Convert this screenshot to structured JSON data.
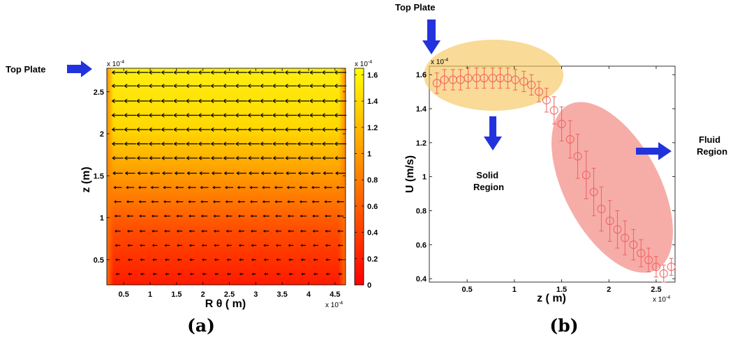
{
  "annotations": {
    "top_plate_left": "Top Plate",
    "top_plate_right": "Top Plate",
    "solid_region": [
      "Solid",
      "Region"
    ],
    "fluid_region": [
      "Fluid",
      "Region"
    ],
    "arrow_color": "#2233dd",
    "solid_ellipse_color": "#f5c455",
    "fluid_ellipse_color": "#f07a72"
  },
  "chart_data": [
    {
      "type": "heatmap",
      "panel_label": "(a)",
      "xlabel": "R θ ( m)",
      "ylabel": "z (m)",
      "x_ticks": [
        "0.5",
        "1",
        "1.5",
        "2",
        "2.5",
        "3",
        "3.5",
        "4",
        "4.5"
      ],
      "x_tick_values": [
        0.5,
        1,
        1.5,
        2,
        2.5,
        3,
        3.5,
        4,
        4.5
      ],
      "x_multiplier": "x 10",
      "x_multiplier_exp": "-4",
      "y_ticks": [
        "0.5",
        "1",
        "1.5",
        "2",
        "2.5"
      ],
      "y_tick_values": [
        0.5,
        1,
        1.5,
        2,
        2.5
      ],
      "y_multiplier": "x 10",
      "y_multiplier_exp": "-4",
      "xlim": [
        0.18,
        4.7
      ],
      "ylim": [
        0.2,
        2.78
      ],
      "colorbar": {
        "ticks": [
          "0",
          "0.2",
          "0.4",
          "0.6",
          "0.8",
          "1",
          "1.2",
          "1.4",
          "1.6"
        ],
        "tick_values": [
          0,
          0.2,
          0.4,
          0.6,
          0.8,
          1.0,
          1.2,
          1.4,
          1.6
        ],
        "multiplier": "x 10",
        "multiplier_exp": "-4",
        "range": [
          0,
          1.65
        ],
        "colormap": "autumn"
      },
      "vector_field": {
        "direction": "negative x",
        "rows_z": [
          0.33,
          0.5,
          0.67,
          0.84,
          1.02,
          1.19,
          1.36,
          1.53,
          1.71,
          1.88,
          2.05,
          2.22,
          2.39,
          2.57,
          2.73
        ],
        "magnitude": [
          0.47,
          0.55,
          0.64,
          0.72,
          0.8,
          0.92,
          1.05,
          1.3,
          1.47,
          1.54,
          1.57,
          1.58,
          1.58,
          1.58,
          1.56
        ]
      },
      "profile_x": [
        0.18,
        0.28,
        4.6,
        4.7
      ],
      "profile_factor": [
        0.2,
        1,
        1,
        0.2
      ]
    },
    {
      "type": "scatter",
      "panel_label": "(b)",
      "xlabel": "z ( m)",
      "ylabel": "U (m/s)",
      "x_ticks": [
        "0.5",
        "1",
        "1.5",
        "2",
        "2.5"
      ],
      "x_tick_values": [
        0.5,
        1,
        1.5,
        2,
        2.5
      ],
      "x_multiplier": "x 10",
      "x_multiplier_exp": "-4",
      "y_ticks": [
        "0.4",
        "0.6",
        "0.8",
        "1",
        "1.2",
        "1.4",
        "1.6"
      ],
      "y_tick_values": [
        0.4,
        0.6,
        0.8,
        1.0,
        1.2,
        1.4,
        1.6
      ],
      "y_multiplier": "x 10",
      "y_multiplier_exp": "-4",
      "xlim": [
        0.1,
        2.7
      ],
      "ylim": [
        0.38,
        1.65
      ],
      "marker": "open circle",
      "marker_color": "#f06060",
      "errorbars": true,
      "x": [
        0.18,
        0.26,
        0.35,
        0.43,
        0.51,
        0.6,
        0.68,
        0.77,
        0.85,
        0.93,
        1.01,
        1.1,
        1.18,
        1.26,
        1.34,
        1.42,
        1.5,
        1.59,
        1.67,
        1.76,
        1.84,
        1.92,
        2.01,
        2.09,
        2.17,
        2.26,
        2.34,
        2.42,
        2.5,
        2.58,
        2.66
      ],
      "y": [
        1.55,
        1.57,
        1.57,
        1.57,
        1.58,
        1.58,
        1.58,
        1.58,
        1.58,
        1.58,
        1.57,
        1.56,
        1.54,
        1.5,
        1.45,
        1.39,
        1.31,
        1.22,
        1.12,
        1.01,
        0.91,
        0.81,
        0.74,
        0.69,
        0.64,
        0.6,
        0.55,
        0.51,
        0.47,
        0.43,
        0.47
      ],
      "err": [
        0.06,
        0.06,
        0.06,
        0.06,
        0.06,
        0.06,
        0.06,
        0.06,
        0.06,
        0.06,
        0.06,
        0.06,
        0.06,
        0.06,
        0.07,
        0.08,
        0.1,
        0.11,
        0.13,
        0.14,
        0.14,
        0.13,
        0.12,
        0.11,
        0.1,
        0.09,
        0.08,
        0.07,
        0.06,
        0.05,
        0.05
      ]
    }
  ]
}
